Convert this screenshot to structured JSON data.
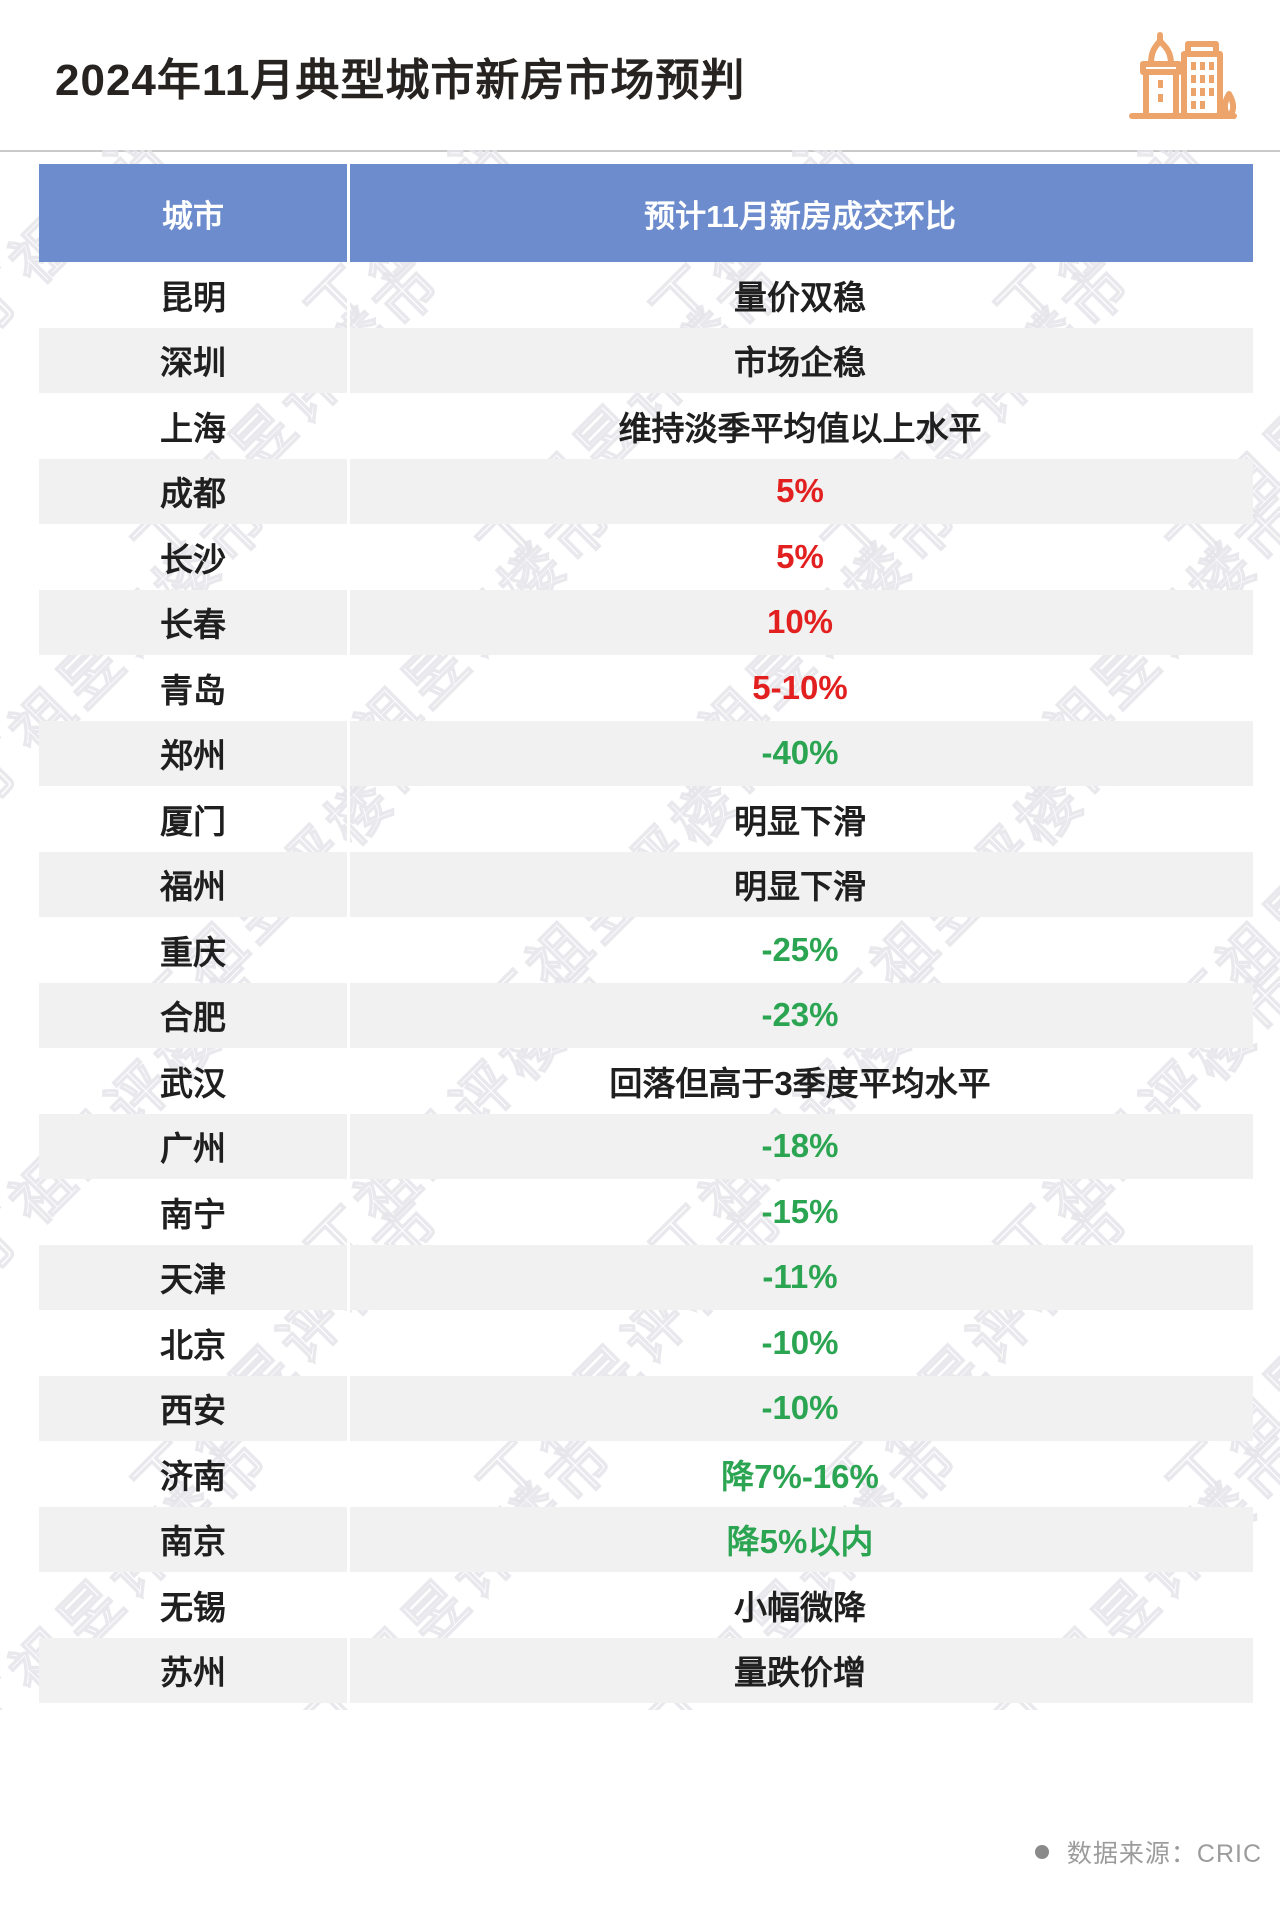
{
  "page": {
    "title": "2024年11月典型城市新房市场预判"
  },
  "icon": {
    "name": "city-buildings-icon",
    "color": "#eca46b"
  },
  "watermark": {
    "text": "丁祖昱评楼市"
  },
  "colors": {
    "header_bg": "#6c8ccd",
    "row_alt_bg": "#f1f1f1",
    "value_black": "#1f1f1f",
    "value_red": "#e32020",
    "value_green": "#2ba551"
  },
  "footer": {
    "label": "数据来源：CRIC"
  },
  "chart_data": {
    "type": "table",
    "title": "2024年11月典型城市新房市场预判",
    "headers": [
      "城市",
      "预计11月新房成交环比"
    ],
    "rows": [
      {
        "city": "昆明",
        "value": "量价双稳",
        "color": "black"
      },
      {
        "city": "深圳",
        "value": "市场企稳",
        "color": "black"
      },
      {
        "city": "上海",
        "value": "维持淡季平均值以上水平",
        "color": "black"
      },
      {
        "city": "成都",
        "value": "5%",
        "color": "red"
      },
      {
        "city": "长沙",
        "value": "5%",
        "color": "red"
      },
      {
        "city": "长春",
        "value": "10%",
        "color": "red"
      },
      {
        "city": "青岛",
        "value": "5-10%",
        "color": "red"
      },
      {
        "city": "郑州",
        "value": "-40%",
        "color": "green"
      },
      {
        "city": "厦门",
        "value": "明显下滑",
        "color": "black"
      },
      {
        "city": "福州",
        "value": "明显下滑",
        "color": "black"
      },
      {
        "city": "重庆",
        "value": "-25%",
        "color": "green"
      },
      {
        "city": "合肥",
        "value": "-23%",
        "color": "green"
      },
      {
        "city": "武汉",
        "value": "回落但高于3季度平均水平",
        "color": "black"
      },
      {
        "city": "广州",
        "value": "-18%",
        "color": "green"
      },
      {
        "city": "南宁",
        "value": "-15%",
        "color": "green"
      },
      {
        "city": "天津",
        "value": "-11%",
        "color": "green"
      },
      {
        "city": "北京",
        "value": "-10%",
        "color": "green"
      },
      {
        "city": "西安",
        "value": "-10%",
        "color": "green"
      },
      {
        "city": "济南",
        "value": "降7%-16%",
        "color": "green"
      },
      {
        "city": "南京",
        "value": "降5%以内",
        "color": "green"
      },
      {
        "city": "无锡",
        "value": "小幅微降",
        "color": "black"
      },
      {
        "city": "苏州",
        "value": "量跌价增",
        "color": "black"
      }
    ],
    "source": "CRIC"
  }
}
